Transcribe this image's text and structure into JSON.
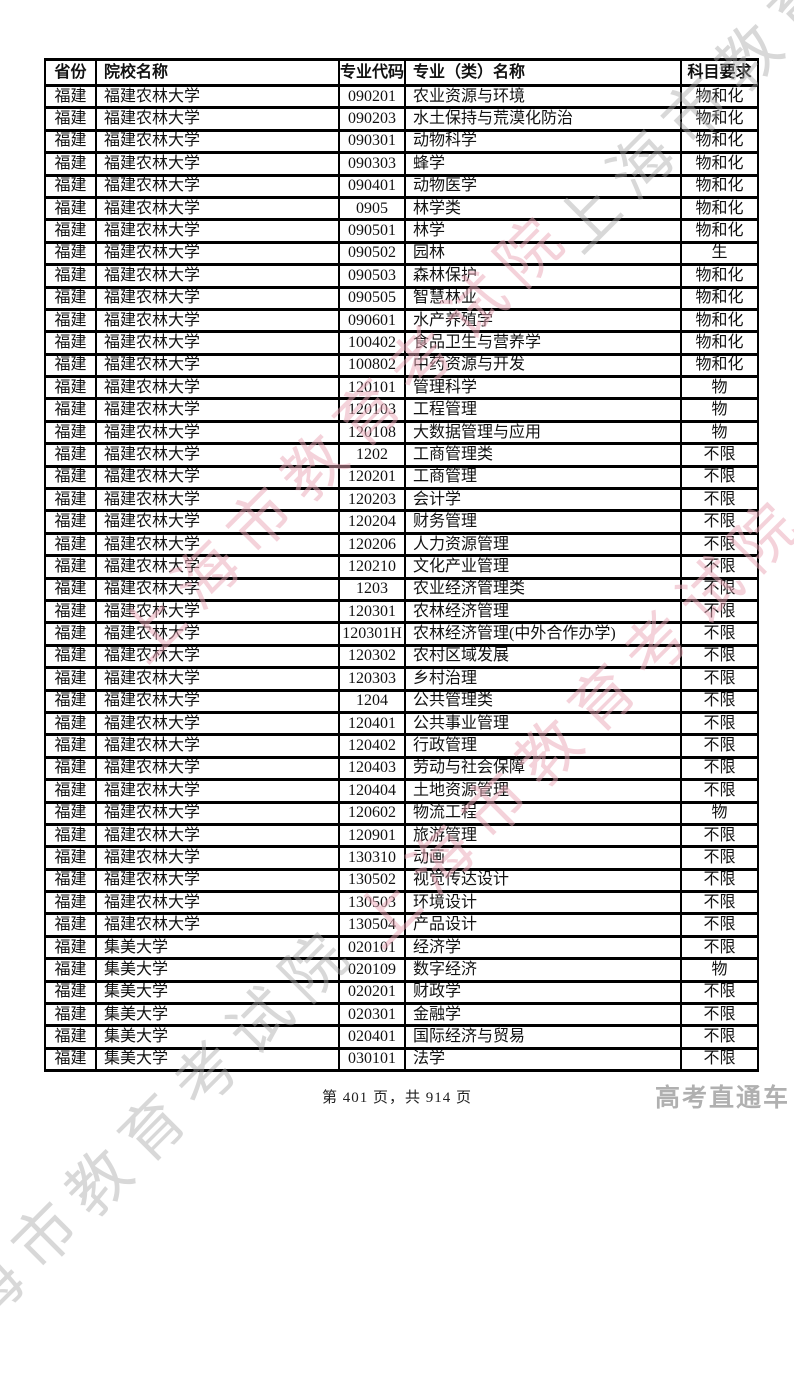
{
  "watermark": {
    "text": "上海市教育考试院",
    "gray_color": "#a8a8a8",
    "pink_color": "#e9a6b6"
  },
  "logo_text": "高考直通车",
  "footer": {
    "page_indicator": "第 401 页，共 914 页",
    "current_page": "401",
    "total_pages": "914"
  },
  "table": {
    "headers": [
      "省份",
      "院校名称",
      "专业代码",
      "专业（类）名称",
      "科目要求"
    ],
    "rows": [
      [
        "福建",
        "福建农林大学",
        "090201",
        "农业资源与环境",
        "物和化"
      ],
      [
        "福建",
        "福建农林大学",
        "090203",
        "水土保持与荒漠化防治",
        "物和化"
      ],
      [
        "福建",
        "福建农林大学",
        "090301",
        "动物科学",
        "物和化"
      ],
      [
        "福建",
        "福建农林大学",
        "090303",
        "蜂学",
        "物和化"
      ],
      [
        "福建",
        "福建农林大学",
        "090401",
        "动物医学",
        "物和化"
      ],
      [
        "福建",
        "福建农林大学",
        "0905",
        "林学类",
        "物和化"
      ],
      [
        "福建",
        "福建农林大学",
        "090501",
        "林学",
        "物和化"
      ],
      [
        "福建",
        "福建农林大学",
        "090502",
        "园林",
        "生"
      ],
      [
        "福建",
        "福建农林大学",
        "090503",
        "森林保护",
        "物和化"
      ],
      [
        "福建",
        "福建农林大学",
        "090505",
        "智慧林业",
        "物和化"
      ],
      [
        "福建",
        "福建农林大学",
        "090601",
        "水产养殖学",
        "物和化"
      ],
      [
        "福建",
        "福建农林大学",
        "100402",
        "食品卫生与营养学",
        "物和化"
      ],
      [
        "福建",
        "福建农林大学",
        "100802",
        "中药资源与开发",
        "物和化"
      ],
      [
        "福建",
        "福建农林大学",
        "120101",
        "管理科学",
        "物"
      ],
      [
        "福建",
        "福建农林大学",
        "120103",
        "工程管理",
        "物"
      ],
      [
        "福建",
        "福建农林大学",
        "120108",
        "大数据管理与应用",
        "物"
      ],
      [
        "福建",
        "福建农林大学",
        "1202",
        "工商管理类",
        "不限"
      ],
      [
        "福建",
        "福建农林大学",
        "120201",
        "工商管理",
        "不限"
      ],
      [
        "福建",
        "福建农林大学",
        "120203",
        "会计学",
        "不限"
      ],
      [
        "福建",
        "福建农林大学",
        "120204",
        "财务管理",
        "不限"
      ],
      [
        "福建",
        "福建农林大学",
        "120206",
        "人力资源管理",
        "不限"
      ],
      [
        "福建",
        "福建农林大学",
        "120210",
        "文化产业管理",
        "不限"
      ],
      [
        "福建",
        "福建农林大学",
        "1203",
        "农业经济管理类",
        "不限"
      ],
      [
        "福建",
        "福建农林大学",
        "120301",
        "农林经济管理",
        "不限"
      ],
      [
        "福建",
        "福建农林大学",
        "120301H",
        "农林经济管理(中外合作办学)",
        "不限"
      ],
      [
        "福建",
        "福建农林大学",
        "120302",
        "农村区域发展",
        "不限"
      ],
      [
        "福建",
        "福建农林大学",
        "120303",
        "乡村治理",
        "不限"
      ],
      [
        "福建",
        "福建农林大学",
        "1204",
        "公共管理类",
        "不限"
      ],
      [
        "福建",
        "福建农林大学",
        "120401",
        "公共事业管理",
        "不限"
      ],
      [
        "福建",
        "福建农林大学",
        "120402",
        "行政管理",
        "不限"
      ],
      [
        "福建",
        "福建农林大学",
        "120403",
        "劳动与社会保障",
        "不限"
      ],
      [
        "福建",
        "福建农林大学",
        "120404",
        "土地资源管理",
        "不限"
      ],
      [
        "福建",
        "福建农林大学",
        "120602",
        "物流工程",
        "物"
      ],
      [
        "福建",
        "福建农林大学",
        "120901",
        "旅游管理",
        "不限"
      ],
      [
        "福建",
        "福建农林大学",
        "130310",
        "动画",
        "不限"
      ],
      [
        "福建",
        "福建农林大学",
        "130502",
        "视觉传达设计",
        "不限"
      ],
      [
        "福建",
        "福建农林大学",
        "130503",
        "环境设计",
        "不限"
      ],
      [
        "福建",
        "福建农林大学",
        "130504",
        "产品设计",
        "不限"
      ],
      [
        "福建",
        "集美大学",
        "020101",
        "经济学",
        "不限"
      ],
      [
        "福建",
        "集美大学",
        "020109",
        "数字经济",
        "物"
      ],
      [
        "福建",
        "集美大学",
        "020201",
        "财政学",
        "不限"
      ],
      [
        "福建",
        "集美大学",
        "020301",
        "金融学",
        "不限"
      ],
      [
        "福建",
        "集美大学",
        "020401",
        "国际经济与贸易",
        "不限"
      ],
      [
        "福建",
        "集美大学",
        "030101",
        "法学",
        "不限"
      ]
    ]
  }
}
